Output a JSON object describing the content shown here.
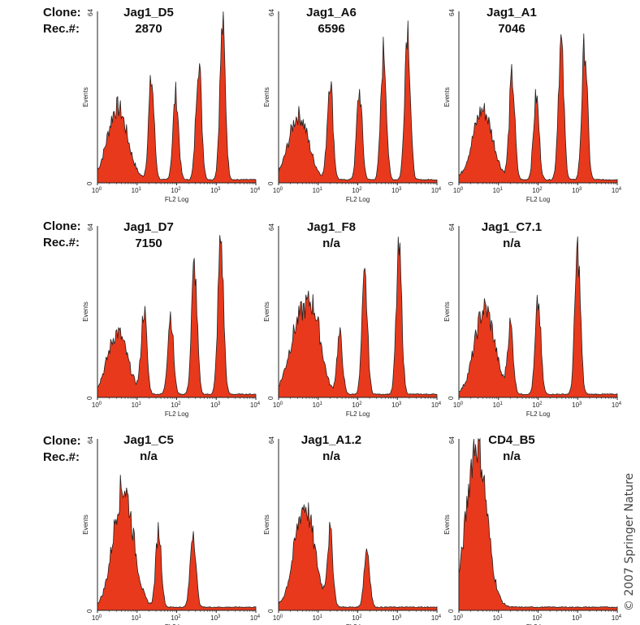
{
  "row_labels": {
    "clone": "Clone:",
    "rec": "Rec.#:"
  },
  "y_axis": {
    "label": "Events",
    "max": 64,
    "zero": "0"
  },
  "x_axis": {
    "label": "FL2 Log",
    "scale": "log",
    "ticks": [
      {
        "b": "10",
        "e": "0"
      },
      {
        "b": "10",
        "e": "1"
      },
      {
        "b": "10",
        "e": "2"
      },
      {
        "b": "10",
        "e": "3"
      },
      {
        "b": "10",
        "e": "4"
      }
    ]
  },
  "fill_color": "#e8391c",
  "copyright": "© 2007 Springer Nature",
  "chart_data": [
    {
      "type": "area",
      "clone": "Jag1_D5",
      "rec": "2870",
      "xlim": [
        1,
        10000
      ],
      "ylim": [
        0,
        64
      ],
      "peaks": [
        {
          "x": 3.2,
          "y": 27
        },
        {
          "x": 23,
          "y": 37
        },
        {
          "x": 95,
          "y": 32
        },
        {
          "x": 360,
          "y": 45
        },
        {
          "x": 1450,
          "y": 57
        }
      ]
    },
    {
      "type": "area",
      "clone": "Jag1_A6",
      "rec": "6596",
      "xlim": [
        1,
        10000
      ],
      "ylim": [
        0,
        64
      ],
      "peaks": [
        {
          "x": 3.2,
          "y": 24
        },
        {
          "x": 20,
          "y": 38
        },
        {
          "x": 110,
          "y": 33
        },
        {
          "x": 450,
          "y": 48
        },
        {
          "x": 1800,
          "y": 58
        }
      ]
    },
    {
      "type": "area",
      "clone": "Jag1_A1",
      "rec": "7046",
      "xlim": [
        1,
        10000
      ],
      "ylim": [
        0,
        64
      ],
      "peaks": [
        {
          "x": 4,
          "y": 26
        },
        {
          "x": 22,
          "y": 38
        },
        {
          "x": 90,
          "y": 31
        },
        {
          "x": 380,
          "y": 51
        },
        {
          "x": 1500,
          "y": 50
        }
      ]
    },
    {
      "type": "area",
      "clone": "Jag1_D7",
      "rec": "7150",
      "xlim": [
        1,
        10000
      ],
      "ylim": [
        0,
        64
      ],
      "peaks": [
        {
          "x": 3.2,
          "y": 23
        },
        {
          "x": 15,
          "y": 31
        },
        {
          "x": 70,
          "y": 30
        },
        {
          "x": 280,
          "y": 48
        },
        {
          "x": 1300,
          "y": 58
        }
      ]
    },
    {
      "type": "area",
      "clone": "Jag1_F8",
      "rec": "n/a",
      "xlim": [
        1,
        10000
      ],
      "ylim": [
        0,
        64
      ],
      "peaks": [
        {
          "x": 3.2,
          "y": 25
        },
        {
          "x": 8,
          "y": 25
        },
        {
          "x": 35,
          "y": 22
        },
        {
          "x": 150,
          "y": 43
        },
        {
          "x": 1100,
          "y": 53
        }
      ]
    },
    {
      "type": "area",
      "clone": "Jag1_C7.1",
      "rec": "n/a",
      "xlim": [
        1,
        10000
      ],
      "ylim": [
        0,
        64
      ],
      "peaks": [
        {
          "x": 4.5,
          "y": 32
        },
        {
          "x": 20,
          "y": 25
        },
        {
          "x": 100,
          "y": 34
        },
        {
          "x": 1000,
          "y": 54
        }
      ]
    },
    {
      "type": "area",
      "clone": "Jag1_C5",
      "rec": "n/a",
      "xlim": [
        1,
        10000
      ],
      "ylim": [
        0,
        64
      ],
      "peaks": [
        {
          "x": 4.5,
          "y": 45
        },
        {
          "x": 35,
          "y": 29
        },
        {
          "x": 260,
          "y": 29
        }
      ]
    },
    {
      "type": "area",
      "clone": "Jag1_A1.2",
      "rec": "n/a",
      "xlim": [
        1,
        10000
      ],
      "ylim": [
        0,
        64
      ],
      "peaks": [
        {
          "x": 4.5,
          "y": 38
        },
        {
          "x": 20,
          "y": 27
        },
        {
          "x": 170,
          "y": 22
        }
      ]
    },
    {
      "type": "area",
      "clone": "CD4_B5",
      "rec": "n/a",
      "xlim": [
        1,
        10000
      ],
      "ylim": [
        0,
        64
      ],
      "peaks": [
        {
          "x": 2.8,
          "y": 62
        }
      ]
    }
  ]
}
